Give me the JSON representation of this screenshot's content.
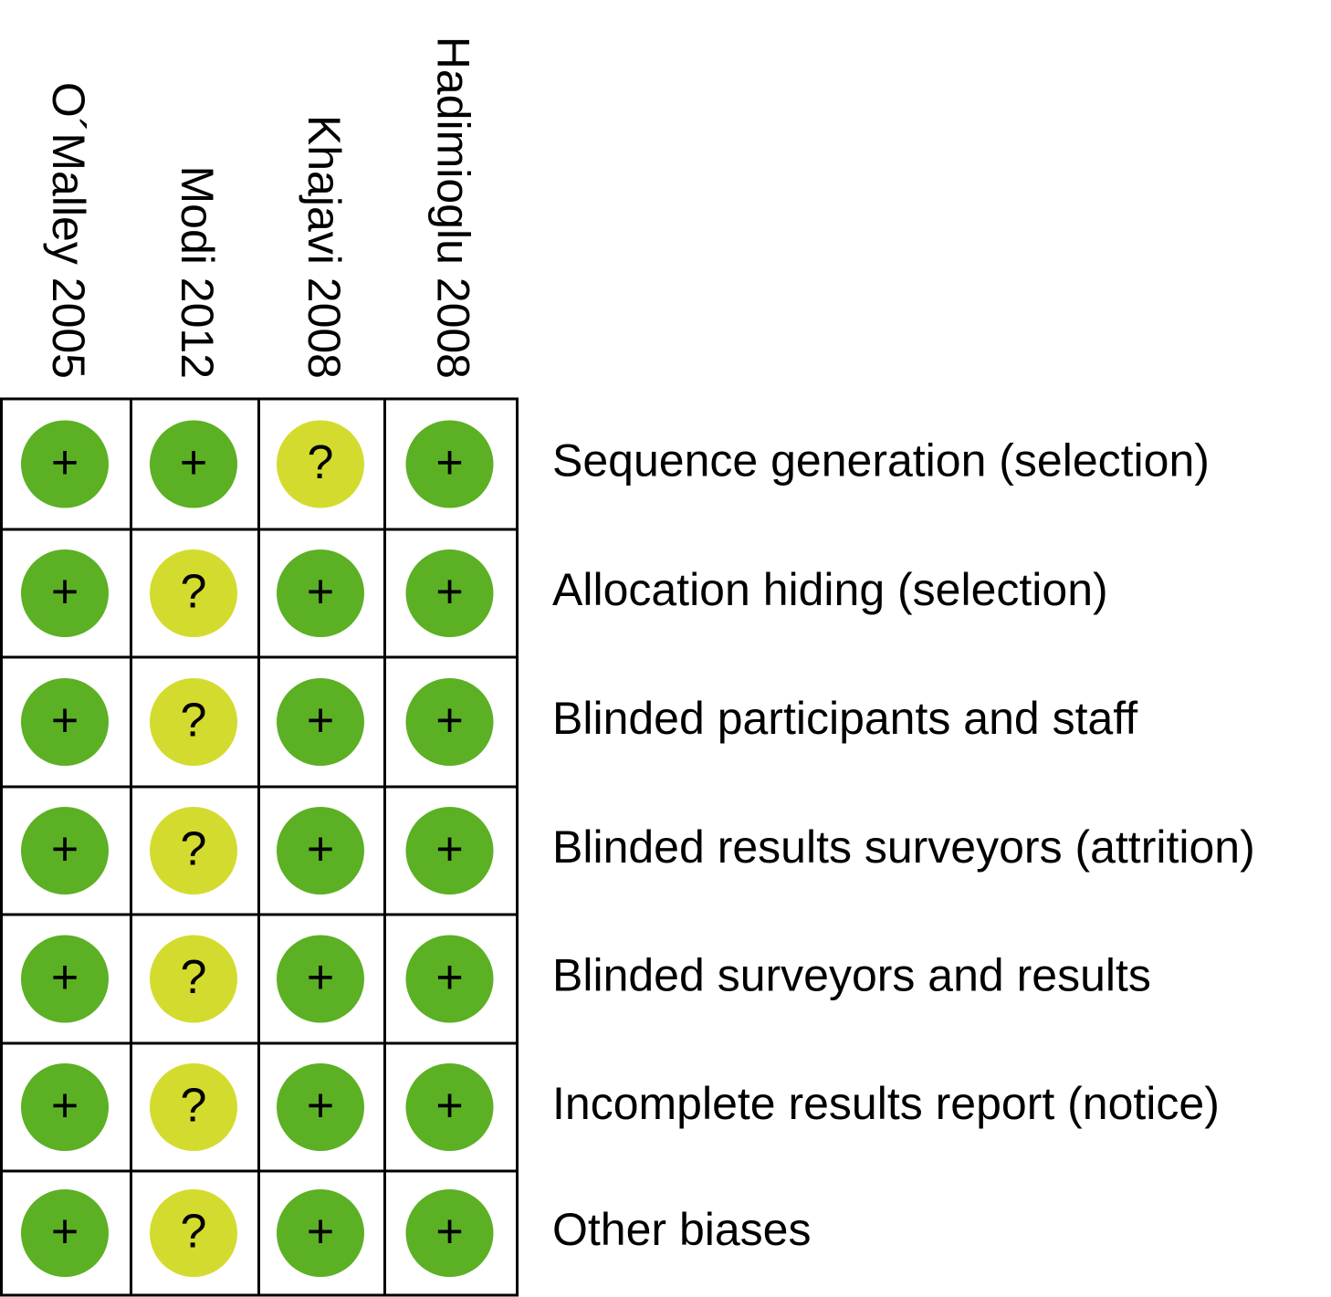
{
  "studies": [
    "O´Malley 2005",
    "Modi 2012",
    "Khajavi 2008",
    "Hadimioglu 2008"
  ],
  "domains": [
    "Sequence generation (selection)",
    "Allocation hiding (selection)",
    "Blinded participants and staff",
    "Blinded results surveyors (attrition)",
    "Blinded surveyors and results",
    "Incomplete results report (notice)",
    "Other biases"
  ],
  "judgments": [
    [
      "+",
      "+",
      "?",
      "+"
    ],
    [
      "+",
      "?",
      "+",
      "+"
    ],
    [
      "+",
      "?",
      "+",
      "+"
    ],
    [
      "+",
      "?",
      "+",
      "+"
    ],
    [
      "+",
      "?",
      "+",
      "+"
    ],
    [
      "+",
      "?",
      "+",
      "+"
    ],
    [
      "+",
      "?",
      "+",
      "+"
    ]
  ],
  "symbol_colors": {
    "+": "#5bb024",
    "?": "#d3dc2e"
  }
}
